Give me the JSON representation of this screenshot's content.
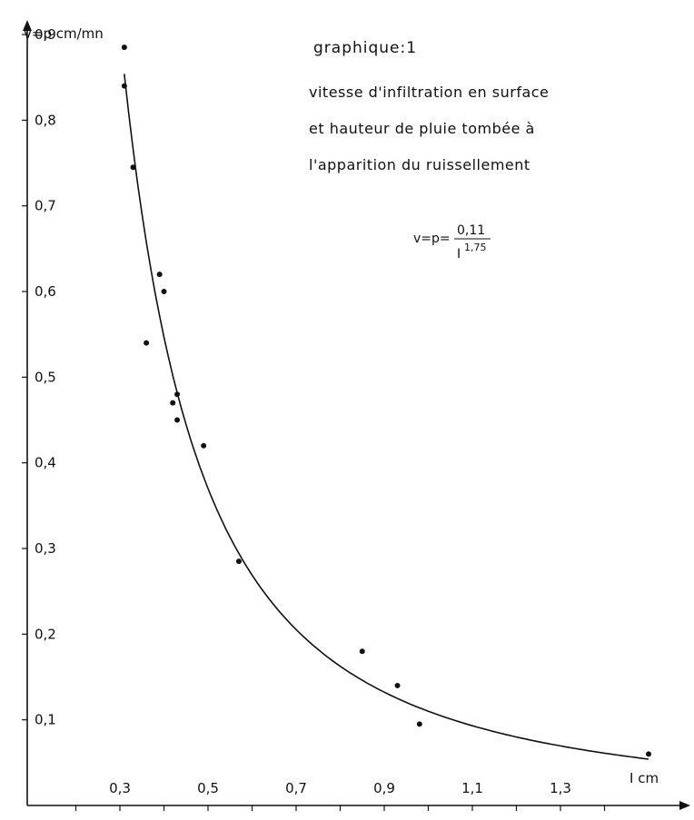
{
  "chart_data": {
    "type": "scatter",
    "title": "graphique:1",
    "subtitle": [
      "vitesse d'infiltration en surface",
      "et hauteur de pluie tombée à",
      "l'apparition du ruissellement"
    ],
    "ylabel": "v=p cm/mn",
    "xlabel": "I cm",
    "xlim": [
      0.1,
      1.5
    ],
    "ylim": [
      0,
      0.9
    ],
    "x_ticks": [
      0.3,
      0.5,
      0.7,
      0.9,
      1.1,
      1.3
    ],
    "x_tick_labels": [
      "0,3",
      "0,5",
      "0,7",
      "0,9",
      "1,1",
      "1,3"
    ],
    "y_ticks": [
      0.1,
      0.2,
      0.3,
      0.4,
      0.5,
      0.6,
      0.7,
      0.8,
      0.9
    ],
    "y_tick_labels": [
      "0,1",
      "0,2",
      "0,3",
      "0,4",
      "0,5",
      "0,6",
      "0,7",
      "0,8",
      "0,9"
    ],
    "formula": {
      "lhs": "v=p=",
      "numerator": "0,11",
      "base": "I",
      "exponent": "1,75"
    },
    "curve": {
      "coefficient": 0.11,
      "exponent": 1.75
    },
    "points": [
      {
        "x": 0.31,
        "y": 0.885
      },
      {
        "x": 0.31,
        "y": 0.84
      },
      {
        "x": 0.33,
        "y": 0.745
      },
      {
        "x": 0.39,
        "y": 0.62
      },
      {
        "x": 0.4,
        "y": 0.6
      },
      {
        "x": 0.36,
        "y": 0.54
      },
      {
        "x": 0.43,
        "y": 0.48
      },
      {
        "x": 0.42,
        "y": 0.47
      },
      {
        "x": 0.43,
        "y": 0.45
      },
      {
        "x": 0.49,
        "y": 0.42
      },
      {
        "x": 0.57,
        "y": 0.285
      },
      {
        "x": 0.85,
        "y": 0.18
      },
      {
        "x": 0.93,
        "y": 0.14
      },
      {
        "x": 0.98,
        "y": 0.095
      },
      {
        "x": 1.5,
        "y": 0.06
      }
    ],
    "grid": false,
    "legend": "none"
  }
}
